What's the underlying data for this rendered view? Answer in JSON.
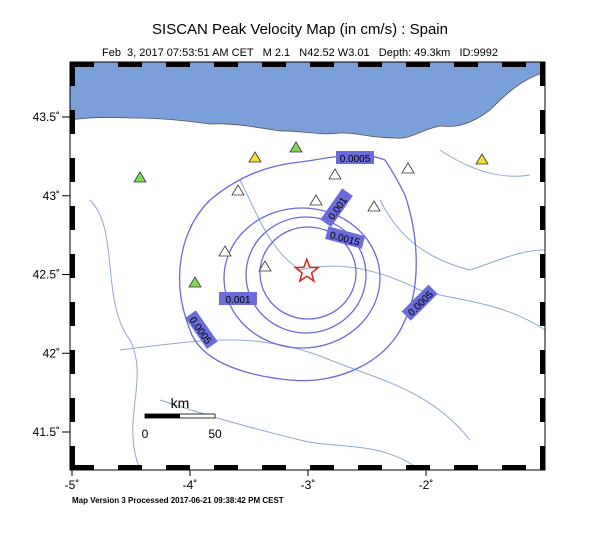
{
  "title": "SISCAN Peak Velocity Map (in cm/s) : Spain",
  "subtitle": "Feb  3, 2017 07:53:51 AM CET   M 2.1   N42.52 W3.01   Depth: 49.3km   ID:9992",
  "footer": "Map Version 3 Processed 2017-06-21 09:38:42 PM CEST",
  "map": {
    "epicenter": {
      "lon": -3.01,
      "lat": 42.52
    },
    "lat_ticks": [
      {
        "value": 43.5,
        "label": "43.5˚"
      },
      {
        "value": 43,
        "label": "43˚"
      },
      {
        "value": 42.5,
        "label": "42.5˚"
      },
      {
        "value": 42,
        "label": "42˚"
      },
      {
        "value": 41.5,
        "label": "41.5˚"
      }
    ],
    "lon_ticks": [
      {
        "value": -5,
        "label": "-5˚"
      },
      {
        "value": -4,
        "label": "-4˚"
      },
      {
        "value": -3,
        "label": "-3˚"
      },
      {
        "value": -2,
        "label": "-2˚"
      }
    ],
    "contour_labels": [
      "0.0005",
      "0.001",
      "0.0015",
      "0.001",
      "0.0005",
      "0.0005"
    ],
    "scale_bar": {
      "unit": "km",
      "labels": [
        "0",
        "50"
      ]
    }
  }
}
